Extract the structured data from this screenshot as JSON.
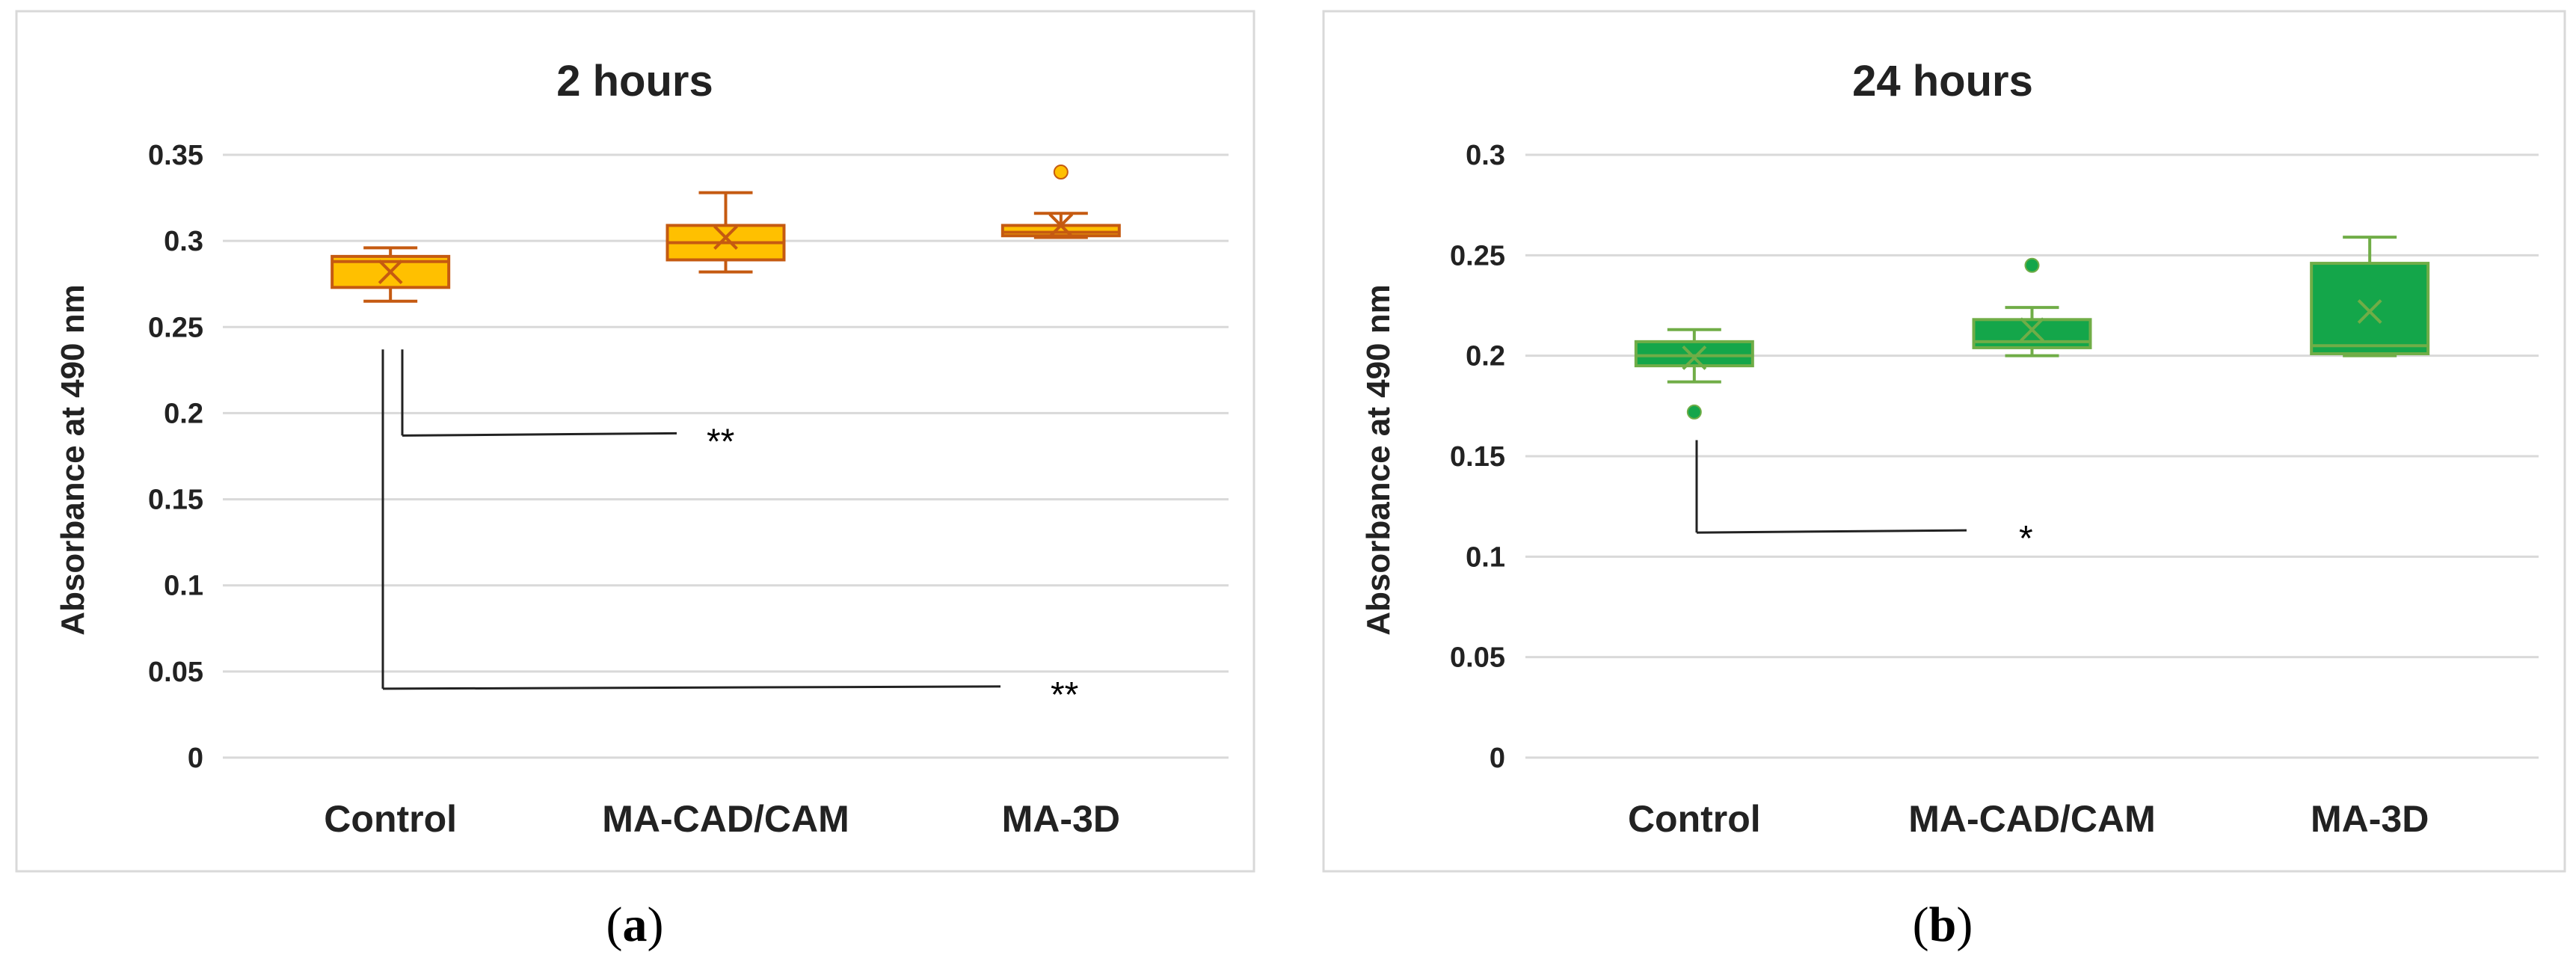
{
  "chart_data": [
    {
      "id": "a",
      "type": "box",
      "title": "2 hours",
      "ylabel": "Absorbance at 490 nm",
      "xlabel": "",
      "ylim": [
        0,
        0.35
      ],
      "yticks": [
        "0",
        "0.05",
        "0.1",
        "0.15",
        "0.2",
        "0.25",
        "0.3",
        "0.35"
      ],
      "ytick_values": [
        0,
        0.05,
        0.1,
        0.15,
        0.2,
        0.25,
        0.3,
        0.35
      ],
      "categories": [
        "Control",
        "MA-CAD/CAM",
        "MA-3D"
      ],
      "grid": true,
      "fill_color": "#FFC000",
      "stroke_color": "#C55A11",
      "boxes": [
        {
          "category": "Control",
          "whisker_low": 0.265,
          "q1": 0.273,
          "median": 0.288,
          "q3": 0.291,
          "whisker_high": 0.296,
          "mean": 0.282,
          "outliers": []
        },
        {
          "category": "MA-CAD/CAM",
          "whisker_low": 0.282,
          "q1": 0.289,
          "median": 0.299,
          "q3": 0.309,
          "whisker_high": 0.328,
          "mean": 0.302,
          "outliers": []
        },
        {
          "category": "MA-3D",
          "whisker_low": 0.302,
          "q1": 0.303,
          "median": 0.305,
          "q3": 0.309,
          "whisker_high": 0.316,
          "mean": 0.309,
          "outliers": [
            0.34
          ]
        }
      ],
      "annotations": [
        {
          "label": "**",
          "from": "Control",
          "to": "MA-CAD/CAM",
          "y_start": 0.237,
          "y_bracket": 0.187
        },
        {
          "label": "**",
          "from": "Control",
          "to": "MA-3D",
          "y_start": 0.237,
          "y_bracket": 0.04
        }
      ],
      "caption_prefix": "(",
      "caption_letter": "a",
      "caption_suffix": ")"
    },
    {
      "id": "b",
      "type": "box",
      "title": "24 hours",
      "ylabel": "Absorbance at 490 nm",
      "xlabel": "",
      "ylim": [
        0,
        0.3
      ],
      "yticks": [
        "0",
        "0.05",
        "0.1",
        "0.15",
        "0.2",
        "0.25",
        "0.3"
      ],
      "ytick_values": [
        0,
        0.05,
        0.1,
        0.15,
        0.2,
        0.25,
        0.3
      ],
      "categories": [
        "Control",
        "MA-CAD/CAM",
        "MA-3D"
      ],
      "grid": true,
      "fill_color": "#14A64A",
      "stroke_color": "#70AD47",
      "boxes": [
        {
          "category": "Control",
          "whisker_low": 0.187,
          "q1": 0.195,
          "median": 0.2,
          "q3": 0.207,
          "whisker_high": 0.213,
          "mean": 0.199,
          "outliers": [
            0.172
          ]
        },
        {
          "category": "MA-CAD/CAM",
          "whisker_low": 0.2,
          "q1": 0.204,
          "median": 0.207,
          "q3": 0.218,
          "whisker_high": 0.224,
          "mean": 0.213,
          "outliers": [
            0.245
          ]
        },
        {
          "category": "MA-3D",
          "whisker_low": 0.2,
          "q1": 0.201,
          "median": 0.205,
          "q3": 0.246,
          "whisker_high": 0.259,
          "mean": 0.222,
          "outliers": []
        }
      ],
      "annotations": [
        {
          "label": "*",
          "from": "Control",
          "to": "MA-CAD/CAM",
          "y_start": 0.158,
          "y_bracket": 0.112
        }
      ],
      "caption_prefix": "(",
      "caption_letter": "b",
      "caption_suffix": ")"
    }
  ]
}
